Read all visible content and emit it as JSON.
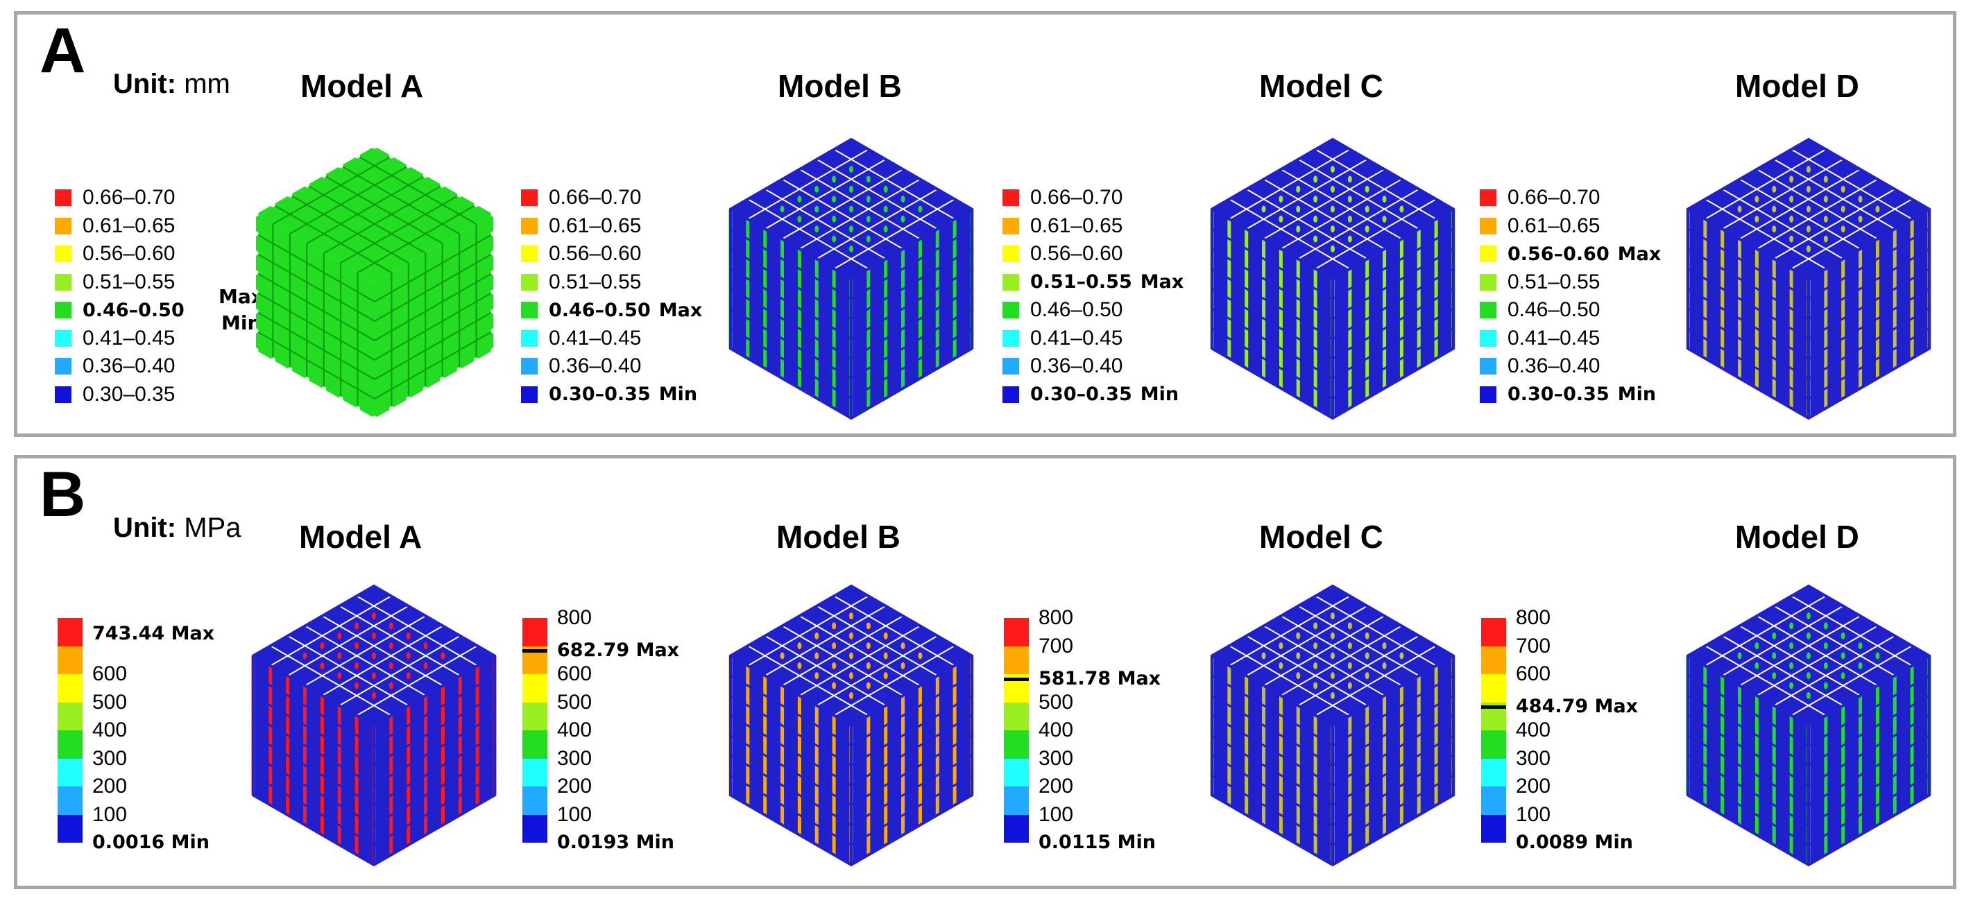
{
  "colors": {
    "red": "#ff1a1a",
    "orange": "#ffaa00",
    "yellow": "#ffff00",
    "lime": "#99ee22",
    "green": "#22dd22",
    "cyan": "#22ffff",
    "sky": "#22aaff",
    "blue": "#1111dd",
    "frame": "#2020cc",
    "gold": "#c8c030"
  },
  "panel_a": {
    "label": "A",
    "unit_label": "Unit:",
    "unit_value": "mm",
    "legend_ranges": [
      "0.66–0.70",
      "0.61–0.65",
      "0.56–0.60",
      "0.51–0.55",
      "0.46–0.50",
      "0.41–0.45",
      "0.36–0.40",
      "0.30–0.35"
    ],
    "max_label": "Max",
    "min_label": "Min",
    "models": [
      {
        "title": "Model A",
        "max_range": "0.46–0.50",
        "min_range": "0.46–0.50",
        "face_color": "green"
      },
      {
        "title": "Model B",
        "max_range": "0.46–0.50",
        "min_range": "0.30–0.35",
        "face_color": "green"
      },
      {
        "title": "Model C",
        "max_range": "0.51–0.55",
        "min_range": "0.30–0.35",
        "face_color": "lime"
      },
      {
        "title": "Model D",
        "max_range": "0.56–0.60",
        "min_range": "0.30–0.35",
        "face_color": "gold"
      }
    ]
  },
  "panel_b": {
    "label": "B",
    "unit_label": "Unit:",
    "unit_value": "MPa",
    "ticks": [
      "800",
      "700",
      "600",
      "500",
      "400",
      "300",
      "200",
      "100"
    ],
    "max_label": "Max",
    "min_label": "Min",
    "scale_max": 800,
    "models": [
      {
        "title": "Model A",
        "max_value": 743.44,
        "max_text": "743.44",
        "min_text": "0.0016",
        "face_color": "red"
      },
      {
        "title": "Model B",
        "max_value": 682.79,
        "max_text": "682.79",
        "min_text": "0.0193",
        "face_color": "orange"
      },
      {
        "title": "Model C",
        "max_value": 581.78,
        "max_text": "581.78",
        "min_text": "0.0115",
        "face_color": "gold"
      },
      {
        "title": "Model D",
        "max_value": 484.79,
        "max_text": "484.79",
        "min_text": "0.0089",
        "face_color": "green"
      }
    ]
  }
}
